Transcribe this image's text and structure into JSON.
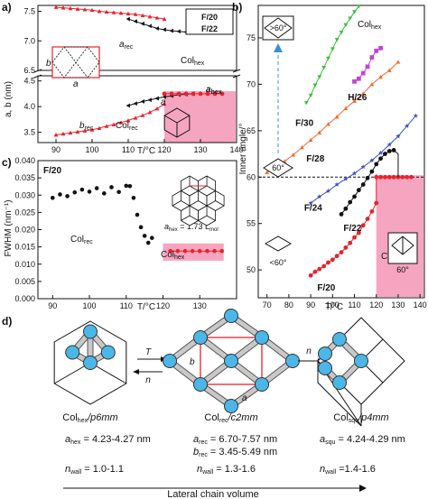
{
  "panels": {
    "a": {
      "label": "a)",
      "ylabel": "a, b (nm)",
      "xlabel": "T/°C",
      "xticks": [
        "90",
        "100",
        "110",
        "120",
        "130",
        "140"
      ],
      "yticks_top": [
        "6.5",
        "7.0",
        "7.5"
      ],
      "yticks_bottom": [
        "3.5",
        "4.0",
        "4.5"
      ],
      "legend": [
        "F/20",
        "F/22"
      ],
      "annotations": {
        "arec": "a",
        "arec_sub": "rec",
        "brec": "b",
        "brec_sub": "rec",
        "colrec": "Col",
        "colrec_sub": "rec",
        "colhex_sub": "hex",
        "ahex": "a",
        "ahex_sub": "hex",
        "unit_a": "a",
        "unit_b": "b"
      }
    },
    "b": {
      "label": "b)",
      "ylabel": "Inner angle/°",
      "xlabel": "T/°C",
      "xticks": [
        "70",
        "80",
        "90",
        "100",
        "110",
        "120",
        "130",
        "140"
      ],
      "yticks": [
        "50",
        "55",
        "60",
        "65",
        "70",
        "75"
      ],
      "annotations": {
        "colhex": "Col",
        "colhex_sub": "hex",
        "colhex2": "Col",
        "colhex2_sub": "hex",
        "gt60": ">60°",
        "eq60": "60°",
        "lt60": "<60°",
        "ang60": "60°"
      },
      "series_labels": [
        "F/30",
        "H/26",
        "F/28",
        "F/24",
        "F/22",
        "F/20"
      ]
    },
    "c": {
      "label": "c)",
      "ylabel": "FWHM (nm⁻¹)",
      "xlabel": "T/°C",
      "xticks": [
        "90",
        "100",
        "110",
        "120",
        "130"
      ],
      "yticks": [
        "0.000",
        "0.005",
        "0.010",
        "0.015",
        "0.020",
        "0.025",
        "0.030",
        "0.035",
        "0.040"
      ],
      "title": "F/20",
      "annotations": {
        "colrec": "Col",
        "colrec_sub": "rec",
        "colhex": "Col",
        "colhex_sub": "hex",
        "formula_a": "a",
        "formula_sub": "hex",
        "formula_rest": " = 1.73 L",
        "formula_sub2": "mol"
      }
    },
    "d": {
      "label": "d)",
      "arrow_T": "T",
      "arrow_n": "n",
      "arrow_n2": "n",
      "unit_a": "a",
      "unit_b": "b",
      "phases": [
        {
          "name": "Col",
          "name_sub": "hex",
          "group": "/p6mm",
          "params": [
            {
              "sym": "a",
              "sub": "hex",
              "val": " = 4.23-4.27 nm"
            }
          ],
          "nwall": " = 1.0-1.1"
        },
        {
          "name": "Col",
          "name_sub": "rec",
          "group": "/c2mm",
          "params": [
            {
              "sym": "a",
              "sub": "rec",
              "val": " = 6.70-7.57 nm"
            },
            {
              "sym": "b",
              "sub": "rec",
              "val": " = 3.45-5.49 nm"
            }
          ],
          "nwall": " = 1.3-1.6"
        },
        {
          "name": "Col",
          "name_sub": "squ",
          "group": "/p4mm",
          "params": [
            {
              "sym": "a",
              "sub": "squ",
              "val": " = 4.24-4.29 nm"
            }
          ],
          "nwall": " =1.4-1.6"
        }
      ],
      "nwall_sym": "n",
      "nwall_sub": "wall",
      "footer": "Lateral chain volume"
    }
  },
  "chart_data": [
    {
      "type": "scatter",
      "panel": "a",
      "xlabel": "T/°C",
      "ylabel": "a, b (nm)",
      "xlim": [
        85,
        140
      ],
      "ylim_top": [
        6.5,
        7.6
      ],
      "ylim_bottom": [
        3.3,
        4.6
      ],
      "series": [
        {
          "name": "F/20",
          "color": "#e8222b",
          "marker": "triangle-up",
          "x": [
            90,
            92,
            94,
            96,
            98,
            100,
            102,
            104,
            106,
            108,
            110,
            112,
            114,
            116,
            118,
            120
          ],
          "a": [
            7.57,
            7.56,
            7.55,
            7.54,
            7.53,
            7.52,
            7.5,
            7.49,
            7.48,
            7.47,
            7.46,
            7.45,
            7.43,
            7.41,
            7.39,
            7.37
          ],
          "b": [
            3.45,
            3.47,
            3.49,
            3.51,
            3.53,
            3.55,
            3.58,
            3.62,
            3.65,
            3.69,
            3.73,
            3.78,
            3.83,
            3.89,
            3.96,
            4.05
          ]
        },
        {
          "name": "F/22",
          "color": "#111111",
          "marker": "triangle-left",
          "x": [
            110,
            112,
            114,
            116,
            118,
            120,
            122,
            124,
            126,
            128
          ],
          "a": [
            7.37,
            7.33,
            7.29,
            7.25,
            7.21,
            7.19,
            7.17,
            7.16,
            7.15,
            7.14
          ],
          "b": [
            4.02,
            4.06,
            4.1,
            4.13,
            4.16,
            4.19,
            4.21,
            4.23,
            4.24,
            4.25
          ]
        },
        {
          "name": "Colhex",
          "color": "#e8222b",
          "marker": "circle",
          "x": [
            120,
            122,
            124,
            126,
            128,
            130,
            132,
            134,
            136
          ],
          "a": [
            4.25,
            4.25,
            4.25,
            4.25,
            4.25,
            4.25,
            4.25,
            4.25,
            4.25
          ]
        }
      ]
    },
    {
      "type": "scatter",
      "panel": "b",
      "xlabel": "T/°C",
      "ylabel": "Inner angle/°",
      "xlim": [
        66,
        142
      ],
      "ylim": [
        47,
        78.5
      ],
      "series": [
        {
          "name": "F/30",
          "color": "#3cbd3c",
          "marker": "triangle-down",
          "x": [
            88,
            90,
            92,
            94,
            96,
            98,
            100,
            102,
            104,
            106,
            108,
            110,
            112
          ],
          "y": [
            68.0,
            68.8,
            69.9,
            70.8,
            71.8,
            72.8,
            73.8,
            74.8,
            75.6,
            76.4,
            77.1,
            77.8,
            78.4
          ]
        },
        {
          "name": "H/26",
          "color": "#c244d8",
          "marker": "square",
          "x": [
            110,
            112,
            114,
            116,
            118,
            120,
            122
          ],
          "y": [
            70.3,
            70.6,
            71.2,
            71.9,
            72.9,
            73.6,
            73.9
          ]
        },
        {
          "name": "F/28",
          "color": "#ee6c2d",
          "marker": "triangle-up",
          "x": [
            70,
            74,
            78,
            82,
            86,
            90,
            94,
            98,
            102,
            106,
            110,
            114,
            118,
            122,
            126,
            130
          ],
          "y": [
            60.5,
            61.0,
            61.7,
            62.4,
            63.2,
            64.0,
            64.8,
            65.7,
            66.5,
            67.4,
            68.2,
            69.0,
            70.0,
            70.8,
            71.5,
            72.4
          ]
        },
        {
          "name": "F/24",
          "color": "#3a4fc8",
          "marker": "star",
          "x": [
            90,
            94,
            98,
            102,
            106,
            110,
            114,
            118,
            122,
            126,
            130,
            134,
            138
          ],
          "y": [
            57.2,
            57.9,
            58.5,
            59.2,
            59.8,
            60.4,
            61.1,
            61.8,
            62.6,
            63.5,
            64.4,
            65.5,
            66.6
          ]
        },
        {
          "name": "F/22",
          "color": "#111111",
          "marker": "circle",
          "x": [
            104,
            106,
            108,
            110,
            112,
            114,
            116,
            118,
            120,
            122,
            124,
            126,
            128
          ],
          "y": [
            56.0,
            56.6,
            57.3,
            57.9,
            58.6,
            59.2,
            59.9,
            60.6,
            61.4,
            62.0,
            62.5,
            62.8,
            62.9
          ]
        },
        {
          "name": "F/20",
          "color": "#e8222b",
          "marker": "circle",
          "x": [
            90,
            92,
            94,
            96,
            98,
            100,
            102,
            104,
            106,
            108,
            110,
            112,
            114,
            116,
            118,
            120
          ],
          "y": [
            49.4,
            49.8,
            50.1,
            50.4,
            50.8,
            51.1,
            51.5,
            51.9,
            52.4,
            52.9,
            53.5,
            54.0,
            54.8,
            55.5,
            56.3,
            57.2
          ]
        },
        {
          "name": "Colhex",
          "color": "#e8222b",
          "marker": "circle",
          "x": [
            120,
            122,
            124,
            126,
            128,
            130,
            132,
            134,
            136
          ],
          "y": [
            60,
            60,
            60,
            60,
            60,
            60,
            60,
            60,
            60
          ]
        }
      ]
    },
    {
      "type": "scatter",
      "panel": "c",
      "title": "F/20",
      "xlabel": "T/°C",
      "ylabel": "FWHM (nm⁻¹)",
      "xlim": [
        86,
        140
      ],
      "ylim": [
        0.0,
        0.04
      ],
      "series": [
        {
          "name": "Colrec",
          "color": "#111111",
          "marker": "circle",
          "x": [
            90,
            92,
            94,
            96,
            98,
            100,
            102,
            104,
            106,
            108,
            110,
            111,
            112,
            113,
            114,
            115,
            116,
            117
          ],
          "y": [
            0.0292,
            0.0302,
            0.0297,
            0.0308,
            0.0316,
            0.031,
            0.032,
            0.0305,
            0.0323,
            0.0309,
            0.0327,
            0.0326,
            0.0292,
            0.0243,
            0.0207,
            0.0182,
            0.0162,
            0.0176
          ]
        },
        {
          "name": "Colhex",
          "color": "#e8222b",
          "marker": "circle",
          "x": [
            122,
            124,
            126,
            128,
            130,
            132,
            134,
            136
          ],
          "y": [
            0.0138,
            0.0138,
            0.0138,
            0.0138,
            0.0138,
            0.0138,
            0.0138,
            0.0138
          ]
        }
      ]
    }
  ]
}
